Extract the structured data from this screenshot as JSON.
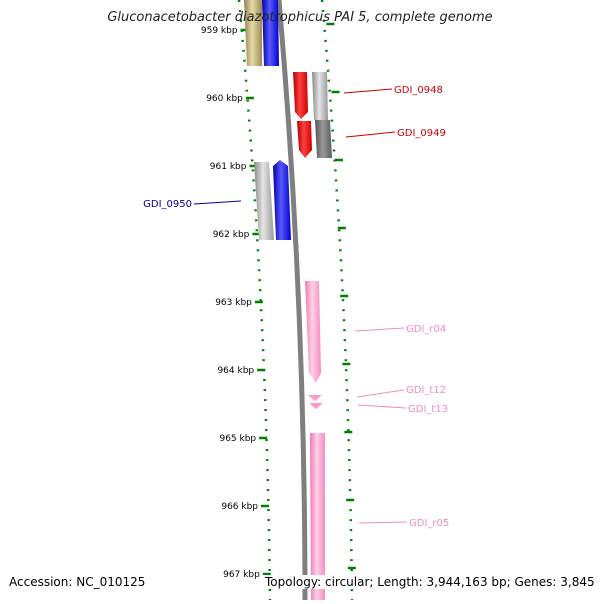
{
  "title": "Gluconacetobacter diazotrophicus PAI 5, complete genome",
  "footer": {
    "accession": "Accession: NC_010125",
    "topology": "Topology: circular; Length: 3,944,163 bp; Genes: 3,845"
  },
  "scale": {
    "ticks": [
      "959 kbp",
      "960 kbp",
      "961 kbp",
      "962 kbp",
      "963 kbp",
      "964 kbp",
      "965 kbp",
      "966 kbp",
      "967 kbp"
    ]
  },
  "genes": [
    {
      "name": "GDI_0948",
      "color": "#cc0000"
    },
    {
      "name": "GDI_0949",
      "color": "#cc0000"
    },
    {
      "name": "GDI_0950",
      "color": "#000099"
    },
    {
      "name": "GDI_r04",
      "color": "#f08cbf"
    },
    {
      "name": "GDI_t12",
      "color": "#f08cbf"
    },
    {
      "name": "GDI_t13",
      "color": "#f08cbf"
    },
    {
      "name": "GDI_r05",
      "color": "#f08cbf"
    }
  ],
  "colors": {
    "scale_ticks": "#008000",
    "backbone": "#808080",
    "cds_red": "#ee0000",
    "cds_blue": "#0000ff",
    "rna_pink": "#ff99cc",
    "olive": "#bbaa66",
    "gray": "#aaaaaa"
  }
}
